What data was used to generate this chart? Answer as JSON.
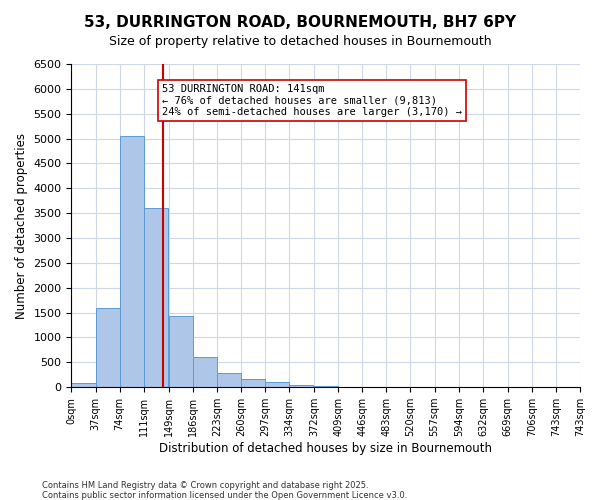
{
  "title_line1": "53, DURRINGTON ROAD, BOURNEMOUTH, BH7 6PY",
  "title_line2": "Size of property relative to detached houses in Bournemouth",
  "xlabel": "Distribution of detached houses by size in Bournemouth",
  "ylabel": "Number of detached properties",
  "annotation_title": "53 DURRINGTON ROAD: 141sqm",
  "annotation_line2": "← 76% of detached houses are smaller (9,813)",
  "annotation_line3": "24% of semi-detached houses are larger (3,170) →",
  "footer_line1": "Contains HM Land Registry data © Crown copyright and database right 2025.",
  "footer_line2": "Contains public sector information licensed under the Open Government Licence v3.0.",
  "bar_color": "#aec6e8",
  "bar_edge_color": "#5b9bd5",
  "reference_line_color": "#cc0000",
  "reference_line_x": 141,
  "annotation_box_color": "#ffffff",
  "annotation_box_edge_color": "#cc0000",
  "background_color": "#ffffff",
  "grid_color": "#d0d8e8",
  "categories": [
    "0sqm",
    "37sqm",
    "74sqm",
    "111sqm",
    "149sqm",
    "186sqm",
    "223sqm",
    "260sqm",
    "297sqm",
    "334sqm",
    "372sqm",
    "409sqm",
    "446sqm",
    "483sqm",
    "520sqm",
    "557sqm",
    "594sqm",
    "632sqm",
    "669sqm",
    "706sqm",
    "743sqm"
  ],
  "bin_edges": [
    0,
    37,
    74,
    111,
    149,
    186,
    223,
    260,
    297,
    334,
    372,
    409,
    446,
    483,
    520,
    557,
    594,
    632,
    669,
    706,
    743
  ],
  "bin_width": 37,
  "values": [
    75,
    1600,
    5050,
    3600,
    1430,
    600,
    280,
    160,
    100,
    50,
    20,
    10,
    5,
    3,
    2,
    1,
    0,
    0,
    0,
    0
  ],
  "ylim": [
    0,
    6500
  ],
  "yticks": [
    0,
    500,
    1000,
    1500,
    2000,
    2500,
    3000,
    3500,
    4000,
    4500,
    5000,
    5500,
    6000,
    6500
  ]
}
